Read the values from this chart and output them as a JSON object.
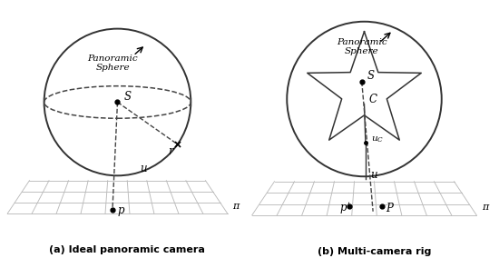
{
  "fig_width": 5.5,
  "fig_height": 2.95,
  "dpi": 100,
  "bg_color": "#ffffff",
  "label_a": "(a) Ideal panoramic camera",
  "label_b": "(b) Multi-camera rig",
  "grid_color": "#bbbbbb",
  "line_color": "#333333",
  "dashed_color": "#444444"
}
